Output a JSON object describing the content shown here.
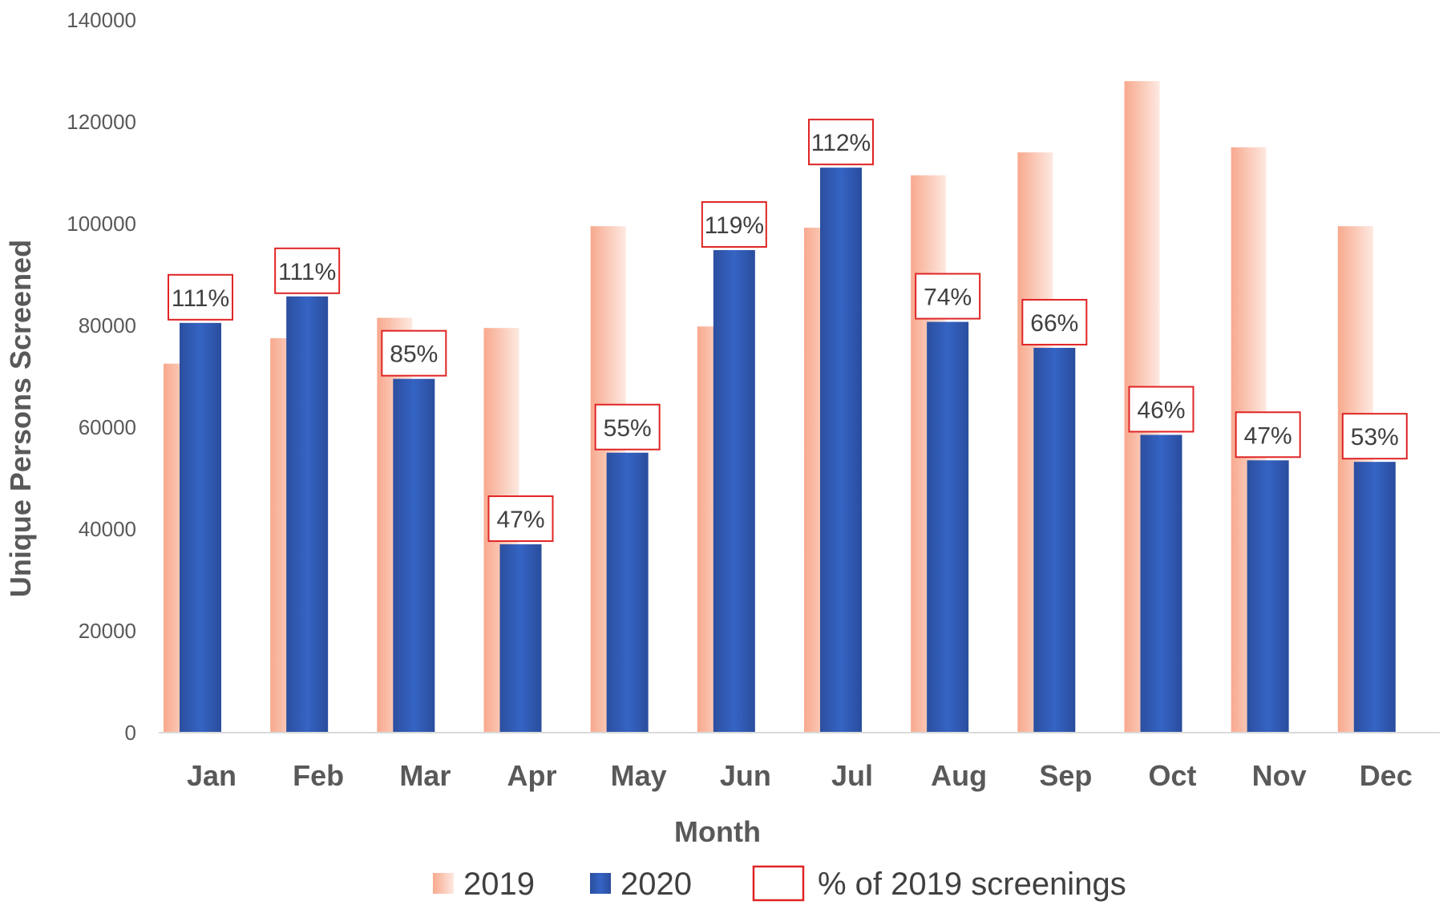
{
  "chart_data": {
    "type": "bar",
    "title": "",
    "xlabel": "Month",
    "ylabel": "Unique Persons Screened",
    "ylim": [
      0,
      140000
    ],
    "yticks": [
      0,
      20000,
      40000,
      60000,
      80000,
      100000,
      120000,
      140000
    ],
    "ytick_labels": [
      "0",
      "20000",
      "40000",
      "60000",
      "80000",
      "100000",
      "120000",
      "140000"
    ],
    "grid": false,
    "legend_position": "bottom",
    "categories": [
      "Jan",
      "Feb",
      "Mar",
      "Apr",
      "May",
      "Jun",
      "Jul",
      "Aug",
      "Sep",
      "Oct",
      "Nov",
      "Dec"
    ],
    "series": [
      {
        "name": "2019",
        "color": "#f8a98e",
        "values": [
          72500,
          77500,
          81500,
          79500,
          99500,
          79800,
          99200,
          109500,
          114000,
          128000,
          115000,
          99500
        ]
      },
      {
        "name": "2020",
        "color": "#2e58b3",
        "values": [
          80500,
          85700,
          69500,
          37000,
          55000,
          94800,
          111000,
          80700,
          75600,
          58500,
          53500,
          53200
        ]
      }
    ],
    "annotations": {
      "legend_label": "% of 2019 screenings",
      "border_color": "#e02424",
      "labels": [
        "111%",
        "111%",
        "85%",
        "47%",
        "55%",
        "119%",
        "112%",
        "74%",
        "66%",
        "46%",
        "47%",
        "53%"
      ]
    }
  }
}
